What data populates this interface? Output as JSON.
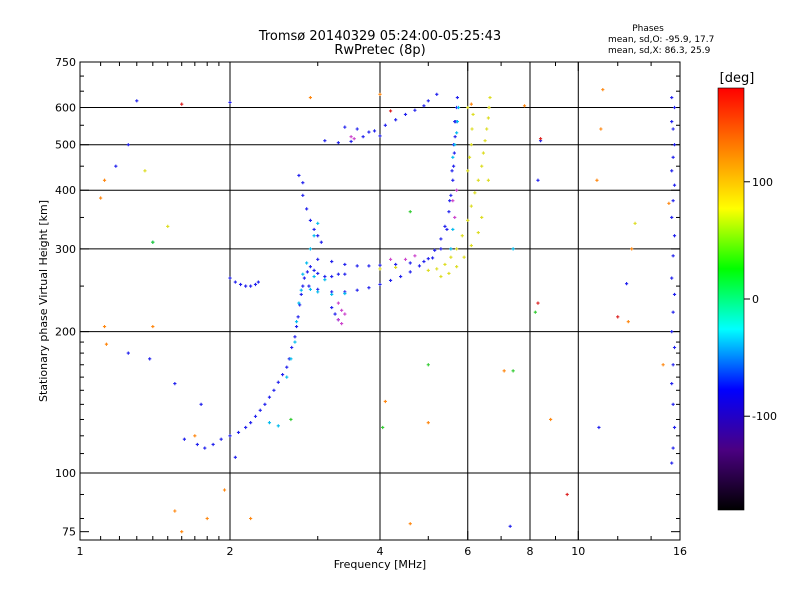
{
  "chart_data": {
    "type": "scatter",
    "title": "Tromsø 20140329 05:24:00-05:25:43",
    "subtitle": "RwPretec (8p)",
    "xlabel": "Frequency [MHz]",
    "ylabel": "Stationary phase Virtual Height [km]",
    "x_scale": "log",
    "y_scale": "log",
    "xlim": [
      1,
      16
    ],
    "ylim": [
      72,
      750
    ],
    "x_ticks": [
      1,
      2,
      4,
      6,
      8,
      10,
      16
    ],
    "x_tick_labels": [
      "1",
      "2",
      "4",
      "6",
      "8",
      "10",
      "16"
    ],
    "x_minor_ticks": [
      1.1,
      1.2,
      1.3,
      1.4,
      1.5,
      1.6,
      1.7,
      1.8,
      1.9,
      3,
      5,
      7,
      9,
      12,
      14
    ],
    "y_ticks": [
      75,
      100,
      200,
      300,
      400,
      500,
      600,
      750
    ],
    "y_tick_labels": [
      "75",
      "100",
      "200",
      "300",
      "400",
      "500",
      "600",
      "750"
    ],
    "y_minor_ticks": [
      80,
      90,
      110,
      120,
      130,
      140,
      150,
      160,
      170,
      180,
      190,
      250,
      350,
      450,
      550,
      650,
      700
    ],
    "grid_lines_x": [
      2,
      4,
      6,
      8,
      10
    ],
    "grid_lines_y": [
      100,
      200,
      300,
      400,
      500,
      600
    ],
    "grid": true,
    "phase_header": "Phases",
    "phase_stats": [
      "mean, sd,O: -95.9, 17.7",
      "mean, sd,X:  86.3, 25.9"
    ],
    "colorbar": {
      "label": "[deg]",
      "range": [
        -180,
        180
      ],
      "ticks": [
        100,
        0,
        -100
      ],
      "tick_labels": [
        "100",
        "0",
        "-100"
      ],
      "colors": [
        "#ff0000",
        "#ff8000",
        "#ffff00",
        "#00ff00",
        "#00ffff",
        "#0000ff",
        "#4b0082",
        "#000000"
      ]
    },
    "series": [
      {
        "color": "#2222ee",
        "points": [
          [
            1.72,
            115
          ],
          [
            1.78,
            113
          ],
          [
            1.85,
            115
          ],
          [
            1.92,
            118
          ],
          [
            2.0,
            120
          ],
          [
            2.08,
            122
          ],
          [
            2.15,
            125
          ],
          [
            2.2,
            128
          ],
          [
            2.25,
            132
          ],
          [
            2.3,
            136
          ],
          [
            2.35,
            140
          ],
          [
            2.4,
            145
          ],
          [
            2.45,
            150
          ],
          [
            2.5,
            156
          ],
          [
            2.55,
            162
          ],
          [
            2.6,
            168
          ],
          [
            2.63,
            175
          ],
          [
            2.66,
            185
          ],
          [
            2.7,
            195
          ],
          [
            2.72,
            205
          ],
          [
            2.74,
            215
          ],
          [
            2.76,
            228
          ],
          [
            2.78,
            240
          ],
          [
            2.8,
            250
          ],
          [
            2.82,
            260
          ],
          [
            2.86,
            268
          ],
          [
            2.0,
            260
          ],
          [
            2.05,
            255
          ],
          [
            2.1,
            252
          ],
          [
            2.15,
            250
          ],
          [
            2.2,
            250
          ],
          [
            2.25,
            252
          ],
          [
            2.28,
            255
          ],
          [
            2.9,
            275
          ],
          [
            2.95,
            270
          ],
          [
            3.0,
            266
          ],
          [
            3.1,
            262
          ],
          [
            3.2,
            262
          ],
          [
            3.3,
            265
          ],
          [
            3.4,
            265
          ],
          [
            2.88,
            250
          ],
          [
            3.0,
            246
          ],
          [
            3.2,
            243
          ],
          [
            3.4,
            243
          ],
          [
            3.6,
            245
          ],
          [
            3.8,
            248
          ],
          [
            4.0,
            252
          ],
          [
            4.2,
            257
          ],
          [
            4.4,
            262
          ],
          [
            4.6,
            268
          ],
          [
            4.8,
            276
          ],
          [
            5.0,
            286
          ],
          [
            5.15,
            298
          ],
          [
            5.3,
            315
          ],
          [
            5.4,
            335
          ],
          [
            5.5,
            360
          ],
          [
            5.55,
            390
          ],
          [
            5.6,
            420
          ],
          [
            5.62,
            450
          ],
          [
            5.64,
            480
          ],
          [
            5.66,
            520
          ],
          [
            5.68,
            560
          ],
          [
            5.7,
            600
          ],
          [
            5.72,
            630
          ],
          [
            3.0,
            285
          ],
          [
            3.2,
            282
          ],
          [
            3.4,
            278
          ],
          [
            3.6,
            276
          ],
          [
            3.8,
            276
          ],
          [
            4.0,
            277
          ],
          [
            4.3,
            278
          ],
          [
            4.6,
            280
          ],
          [
            4.9,
            282
          ],
          [
            5.1,
            287
          ],
          [
            5.3,
            300
          ],
          [
            5.45,
            330
          ],
          [
            5.52,
            380
          ],
          [
            5.58,
            440
          ],
          [
            5.62,
            500
          ],
          [
            5.65,
            560
          ],
          [
            3.1,
            510
          ],
          [
            3.3,
            505
          ],
          [
            3.5,
            508
          ],
          [
            3.7,
            520
          ],
          [
            3.9,
            535
          ],
          [
            4.1,
            550
          ],
          [
            4.3,
            565
          ],
          [
            4.5,
            580
          ],
          [
            4.7,
            592
          ],
          [
            4.9,
            605
          ],
          [
            5.0,
            620
          ],
          [
            3.4,
            545
          ],
          [
            3.6,
            540
          ],
          [
            3.8,
            532
          ],
          [
            4.0,
            522
          ],
          [
            2.8,
            390
          ],
          [
            2.85,
            365
          ],
          [
            2.9,
            345
          ],
          [
            2.95,
            330
          ],
          [
            3.0,
            320
          ],
          [
            3.05,
            310
          ],
          [
            2.75,
            430
          ],
          [
            2.8,
            415
          ],
          [
            3.2,
            225
          ],
          [
            3.25,
            218
          ],
          [
            3.3,
            212
          ],
          [
            1.3,
            620
          ],
          [
            2.0,
            615
          ],
          [
            5.2,
            640
          ],
          [
            7.3,
            77
          ],
          [
            1.55,
            155
          ],
          [
            1.75,
            140
          ],
          [
            2.05,
            108
          ],
          [
            1.62,
            118
          ],
          [
            1.38,
            175
          ],
          [
            1.25,
            180
          ],
          [
            1.25,
            500
          ],
          [
            8.4,
            510
          ],
          [
            8.3,
            420
          ],
          [
            1.18,
            450
          ],
          [
            15.4,
            630
          ],
          [
            15.6,
            600
          ],
          [
            15.4,
            560
          ],
          [
            15.5,
            540
          ],
          [
            15.6,
            500
          ],
          [
            15.5,
            470
          ],
          [
            15.4,
            440
          ],
          [
            15.6,
            410
          ],
          [
            15.5,
            380
          ],
          [
            15.4,
            350
          ],
          [
            15.6,
            320
          ],
          [
            15.5,
            290
          ],
          [
            15.4,
            260
          ],
          [
            15.6,
            240
          ],
          [
            15.5,
            220
          ],
          [
            15.4,
            200
          ],
          [
            15.6,
            185
          ],
          [
            15.5,
            170
          ],
          [
            15.4,
            155
          ],
          [
            15.5,
            140
          ],
          [
            15.6,
            125
          ],
          [
            15.5,
            113
          ],
          [
            15.4,
            105
          ],
          [
            12.5,
            253
          ],
          [
            11.0,
            125
          ]
        ]
      },
      {
        "color": "#00bbee",
        "points": [
          [
            2.6,
            160
          ],
          [
            2.65,
            175
          ],
          [
            2.7,
            190
          ],
          [
            2.72,
            210
          ],
          [
            2.75,
            230
          ],
          [
            2.78,
            245
          ],
          [
            2.8,
            265
          ],
          [
            2.85,
            280
          ],
          [
            2.9,
            300
          ],
          [
            2.95,
            320
          ],
          [
            3.0,
            340
          ],
          [
            2.9,
            246
          ],
          [
            3.0,
            243
          ],
          [
            3.2,
            240
          ],
          [
            3.4,
            241
          ],
          [
            2.95,
            262
          ],
          [
            3.1,
            258
          ],
          [
            5.6,
            470
          ],
          [
            5.65,
            500
          ],
          [
            5.7,
            530
          ],
          [
            5.72,
            560
          ],
          [
            5.75,
            600
          ],
          [
            5.6,
            330
          ],
          [
            5.55,
            300
          ],
          [
            2.4,
            128
          ],
          [
            2.5,
            126
          ],
          [
            7.4,
            300
          ],
          [
            1.4,
            310
          ]
        ]
      },
      {
        "color": "#cc44cc",
        "points": [
          [
            3.3,
            230
          ],
          [
            3.35,
            222
          ],
          [
            3.4,
            218
          ],
          [
            3.3,
            212
          ],
          [
            3.35,
            208
          ],
          [
            3.5,
            520
          ],
          [
            3.55,
            515
          ],
          [
            5.6,
            380
          ],
          [
            5.65,
            350
          ],
          [
            5.7,
            400
          ],
          [
            4.2,
            285
          ],
          [
            4.5,
            285
          ],
          [
            4.7,
            290
          ]
        ]
      },
      {
        "color": "#dddd22",
        "points": [
          [
            5.0,
            270
          ],
          [
            5.2,
            272
          ],
          [
            5.4,
            278
          ],
          [
            5.55,
            288
          ],
          [
            5.7,
            300
          ],
          [
            5.85,
            320
          ],
          [
            6.0,
            345
          ],
          [
            6.1,
            370
          ],
          [
            6.2,
            395
          ],
          [
            6.3,
            420
          ],
          [
            6.4,
            450
          ],
          [
            6.45,
            480
          ],
          [
            6.5,
            510
          ],
          [
            6.55,
            540
          ],
          [
            6.6,
            570
          ],
          [
            6.62,
            600
          ],
          [
            6.65,
            630
          ],
          [
            5.3,
            262
          ],
          [
            5.5,
            266
          ],
          [
            5.7,
            275
          ],
          [
            5.9,
            288
          ],
          [
            6.1,
            305
          ],
          [
            6.3,
            325
          ],
          [
            6.4,
            350
          ],
          [
            6.0,
            440
          ],
          [
            6.05,
            470
          ],
          [
            6.1,
            500
          ],
          [
            6.12,
            540
          ],
          [
            6.15,
            580
          ],
          [
            6.0,
            600
          ],
          [
            4.0,
            272
          ],
          [
            4.3,
            274
          ],
          [
            6.6,
            420
          ],
          [
            1.5,
            335
          ],
          [
            1.35,
            440
          ],
          [
            13.0,
            340
          ]
        ]
      },
      {
        "color": "#ff8811",
        "points": [
          [
            1.12,
            420
          ],
          [
            1.1,
            385
          ],
          [
            1.12,
            205
          ],
          [
            1.13,
            188
          ],
          [
            1.4,
            205
          ],
          [
            1.7,
            120
          ],
          [
            1.8,
            80
          ],
          [
            1.6,
            75
          ],
          [
            2.9,
            630
          ],
          [
            4.0,
            640
          ],
          [
            4.6,
            78
          ],
          [
            5.0,
            128
          ],
          [
            6.1,
            610
          ],
          [
            7.8,
            605
          ],
          [
            11.2,
            655
          ],
          [
            11.1,
            540
          ],
          [
            12.6,
            210
          ],
          [
            12.8,
            300
          ],
          [
            15.2,
            375
          ],
          [
            14.8,
            170
          ],
          [
            1.95,
            92
          ],
          [
            2.2,
            80
          ],
          [
            8.8,
            130
          ],
          [
            4.1,
            142
          ],
          [
            1.55,
            83
          ],
          [
            10.9,
            420
          ],
          [
            7.1,
            165
          ]
        ]
      },
      {
        "color": "#33cc33",
        "points": [
          [
            1.4,
            310
          ],
          [
            4.05,
            125
          ],
          [
            7.4,
            165
          ],
          [
            2.65,
            130
          ],
          [
            5.0,
            170
          ],
          [
            4.6,
            360
          ],
          [
            8.2,
            220
          ]
        ]
      },
      {
        "color": "#dd2222",
        "points": [
          [
            4.2,
            590
          ],
          [
            8.3,
            230
          ],
          [
            1.6,
            610
          ],
          [
            8.4,
            515
          ],
          [
            9.5,
            90
          ],
          [
            12.0,
            215
          ]
        ]
      }
    ]
  }
}
